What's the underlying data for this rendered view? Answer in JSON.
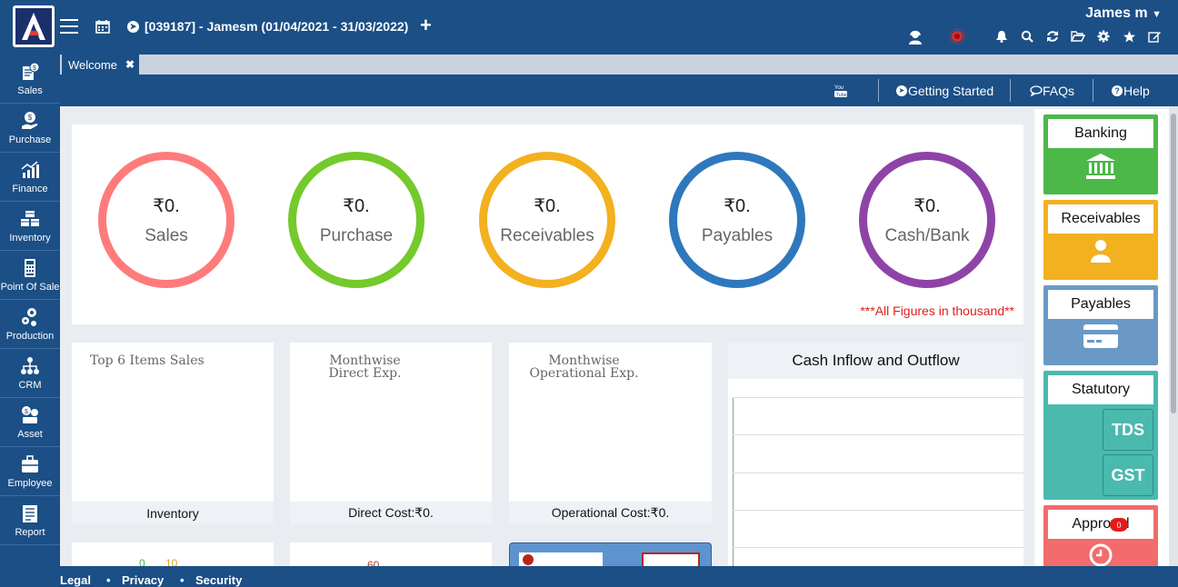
{
  "header": {
    "company": "[039187] - Jamesm (01/04/2021 - 31/03/2022)",
    "user": "James m",
    "icons": [
      "support-agent-icon",
      "notification-pulse-icon",
      "bell-icon",
      "search-icon",
      "refresh-icon",
      "folder-open-icon",
      "gear-icon",
      "star-icon",
      "edit-icon"
    ]
  },
  "sidebar": {
    "items": [
      {
        "label": "Sales",
        "icon": "sales-icon"
      },
      {
        "label": "Purchase",
        "icon": "purchase-icon"
      },
      {
        "label": "Finance",
        "icon": "finance-icon"
      },
      {
        "label": "Inventory",
        "icon": "inventory-icon"
      },
      {
        "label": "Point Of Sale",
        "icon": "pos-icon"
      },
      {
        "label": "Production",
        "icon": "production-icon"
      },
      {
        "label": "CRM",
        "icon": "crm-icon"
      },
      {
        "label": "Asset",
        "icon": "asset-icon"
      },
      {
        "label": "Employee",
        "icon": "employee-icon"
      },
      {
        "label": "Report",
        "icon": "report-icon"
      }
    ]
  },
  "tabs": [
    {
      "label": "Welcome"
    }
  ],
  "toolbar": {
    "getting_started": "Getting Started",
    "faqs": "FAQs",
    "help": "Help"
  },
  "summary": {
    "circles": [
      {
        "amount": "₹0.",
        "label": "Sales",
        "color": "#ff7b7b"
      },
      {
        "amount": "₹0.",
        "label": "Purchase",
        "color": "#74c92b"
      },
      {
        "amount": "₹0.",
        "label": "Receivables",
        "color": "#f3b01f"
      },
      {
        "amount": "₹0.",
        "label": "Payables",
        "color": "#2f78bd"
      },
      {
        "amount": "₹0.",
        "label": "Cash/Bank",
        "color": "#8e44a7"
      }
    ],
    "note": "***All Figures in thousand**"
  },
  "cards": [
    {
      "title": "Top 6 Items Sales",
      "footer": "Inventory"
    },
    {
      "title": "Monthwise Direct Exp.",
      "footer": "Direct Cost:₹0."
    },
    {
      "title": "Monthwise Operational Exp.",
      "footer": "Operational Cost:₹0."
    }
  ],
  "cash": {
    "title": "Cash Inflow and Outflow"
  },
  "lower": {
    "a1": "0",
    "a2": "10",
    "b1": "60"
  },
  "right_panel": [
    {
      "label": "Banking",
      "color": "#4cb848",
      "icon": "bank-icon"
    },
    {
      "label": "Receivables",
      "color": "#f3b01f",
      "icon": "user-icon"
    },
    {
      "label": "Payables",
      "color": "#6a99c6",
      "icon": "card-icon"
    },
    {
      "label": "Statutory",
      "color": "#4ab9ae",
      "icon": "",
      "sub": [
        "TDS",
        "GST"
      ]
    },
    {
      "label": "Approval",
      "color": "#f26c6c",
      "icon": "clock-icon",
      "badge": "0"
    }
  ],
  "footer": {
    "legal": "Legal",
    "privacy": "Privacy",
    "security": "Security"
  }
}
